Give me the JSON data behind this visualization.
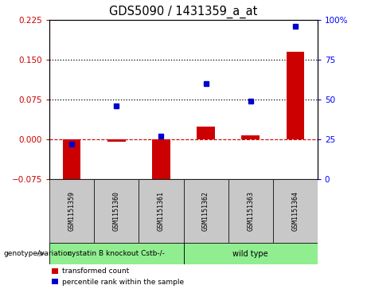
{
  "title": "GDS5090 / 1431359_a_at",
  "samples": [
    "GSM1151359",
    "GSM1151360",
    "GSM1151361",
    "GSM1151362",
    "GSM1151363",
    "GSM1151364"
  ],
  "red_values": [
    -0.085,
    -0.004,
    -0.086,
    0.025,
    0.007,
    0.165
  ],
  "blue_values": [
    22,
    46,
    27,
    60,
    49,
    96
  ],
  "ylim_left": [
    -0.075,
    0.225
  ],
  "ylim_right": [
    0,
    100
  ],
  "yticks_left": [
    -0.075,
    0,
    0.075,
    0.15,
    0.225
  ],
  "yticks_right": [
    0,
    25,
    50,
    75,
    100
  ],
  "hlines": [
    0.075,
    0.15
  ],
  "group1_label": "cystatin B knockout Cstb-/-",
  "group2_label": "wild type",
  "group_label": "genotype/variation",
  "legend_red": "transformed count",
  "legend_blue": "percentile rank within the sample",
  "bar_color": "#CC0000",
  "dot_color": "#0000CC",
  "green_color": "#90EE90",
  "gray_color": "#C8C8C8",
  "label_fontsize": 7.5,
  "title_fontsize": 10.5
}
